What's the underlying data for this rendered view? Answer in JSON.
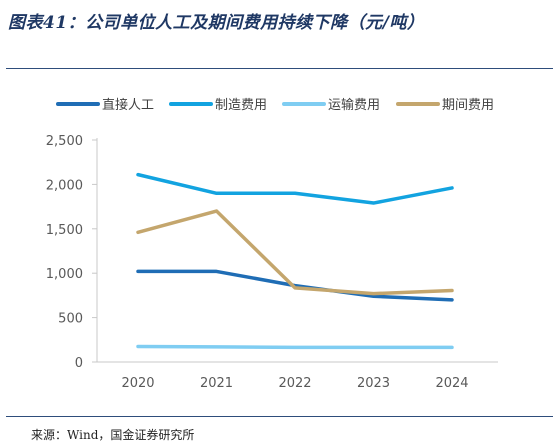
{
  "figure": {
    "title": "图表41：公司单位人工及期间费用持续下降（元/吨）",
    "source": "来源：Wind，国金证券研究所"
  },
  "chart_data": {
    "type": "line",
    "x": [
      "2020",
      "2021",
      "2022",
      "2023",
      "2024"
    ],
    "ylim": [
      0,
      2500
    ],
    "yticks": [
      0,
      500,
      1000,
      1500,
      2000,
      2500
    ],
    "ytick_labels": [
      "0",
      "500",
      "1,000",
      "1,500",
      "2,000",
      "2,500"
    ],
    "grid": false,
    "legend_position": "top",
    "series": [
      {
        "name": "直接人工",
        "color": "#1f6db5",
        "values": [
          1020,
          1020,
          860,
          740,
          700
        ]
      },
      {
        "name": "制造费用",
        "color": "#12a3e0",
        "values": [
          2110,
          1900,
          1900,
          1790,
          1960
        ]
      },
      {
        "name": "运输费用",
        "color": "#7fcdf2",
        "values": [
          175,
          170,
          165,
          165,
          165
        ]
      },
      {
        "name": "期间费用",
        "color": "#c4a66d",
        "values": [
          1460,
          1700,
          835,
          770,
          805
        ]
      }
    ]
  }
}
